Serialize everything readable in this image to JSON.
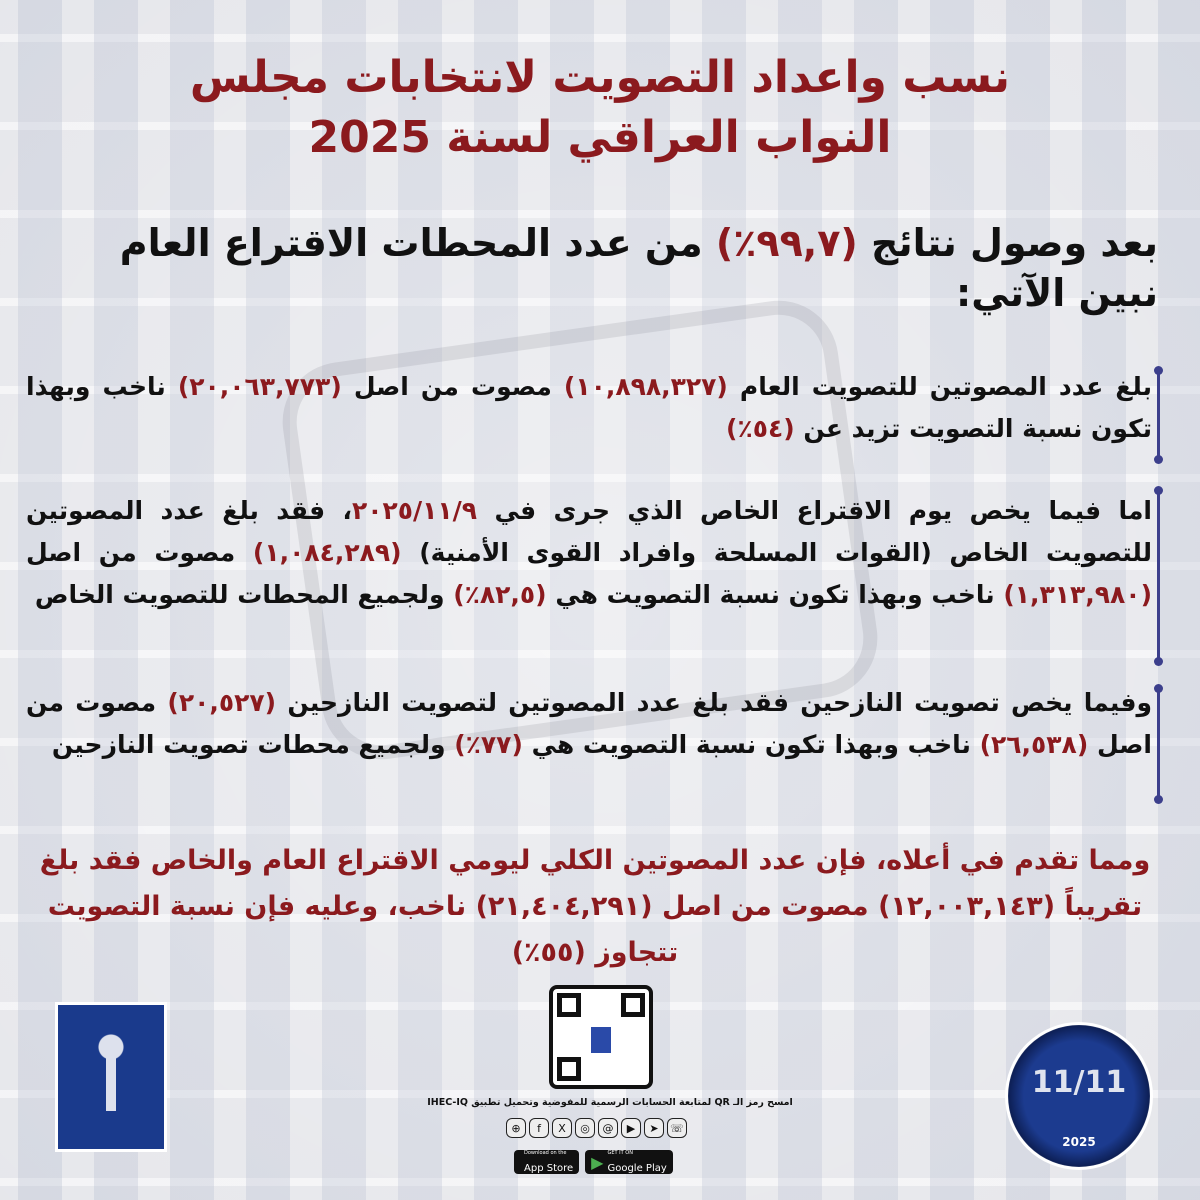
{
  "title": {
    "line1": "نسب واعداد التصويت لانتخابات مجلس",
    "line2": "النواب العراقي لسنة 2025"
  },
  "intro": [
    {
      "t": "بعد وصول نتائج "
    },
    {
      "t": "(٩٩,٧٪)",
      "hl": true
    },
    {
      "t": " من عدد المحطات الاقتراع العام نبين الآتي:"
    }
  ],
  "paragraphs": [
    [
      {
        "t": "بلغ عدد المصوتين للتصويت العام "
      },
      {
        "t": "(١٠,٨٩٨,٣٢٧)",
        "hl": true
      },
      {
        "t": " مصوت من اصل "
      },
      {
        "t": "(٢٠,٠٦٣,٧٧٣)",
        "hl": true
      },
      {
        "t": " ناخب وبهذا تكون نسبة التصويت تزيد عن "
      },
      {
        "t": "(٥٤٪)",
        "hl": true
      }
    ],
    [
      {
        "t": "اما فيما يخص يوم الاقتراع الخاص الذي جرى في "
      },
      {
        "t": "٢٠٢٥/١١/٩",
        "hl": true
      },
      {
        "t": "، فقد بلغ عدد المصوتين للتصويت الخاص (القوات المسلحة وافراد القوى الأمنية) "
      },
      {
        "t": "(١,٠٨٤,٢٨٩)",
        "hl": true
      },
      {
        "t": " مصوت من اصل "
      },
      {
        "t": "(١,٣١٣,٩٨٠)",
        "hl": true
      },
      {
        "t": " ناخب وبهذا تكون نسبة التصويت هي "
      },
      {
        "t": "(٨٢,٥٪)",
        "hl": true
      },
      {
        "t": " ولجميع المحطات للتصويت الخاص"
      }
    ],
    [
      {
        "t": "وفيما يخص تصويت النازحين فقد بلغ عدد المصوتين لتصويت النازحين "
      },
      {
        "t": "(٢٠,٥٢٧)",
        "hl": true
      },
      {
        "t": " مصوت من اصل "
      },
      {
        "t": "(٢٦,٥٣٨)",
        "hl": true
      },
      {
        "t": " ناخب وبهذا تكون نسبة التصويت هي "
      },
      {
        "t": "(٧٧٪)",
        "hl": true
      },
      {
        "t": " ولجميع محطات تصويت النازحين"
      }
    ]
  ],
  "summary": [
    {
      "t": "ومما تقدم في أعلاه، فإن عدد المصوتين الكلي ليومي الاقتراع العام والخاص فقد بلغ تقريباً "
    },
    {
      "t": "(١٢,٠٠٣,١٤٣)"
    },
    {
      "t": " مصوت من اصل "
    },
    {
      "t": "(٢١,٤٠٤,٢٩١)"
    },
    {
      "t": " ناخب، وعليه فإن نسبة التصويت تتجاوز "
    },
    {
      "t": "(٥٥٪)"
    }
  ],
  "footer": {
    "qr_caption": "امسح رمز الـ QR لمتابعة الحسابات الرسمية للمفوضية وتحميل تطبيق IHEC-IQ",
    "social_icons": [
      "globe-icon",
      "facebook-icon",
      "x-icon",
      "instagram-icon",
      "threads-icon",
      "youtube-icon",
      "telegram-icon",
      "viber-icon"
    ],
    "app_store": {
      "small": "Download on the",
      "big": "App Store"
    },
    "google_play": {
      "small": "GET IT ON",
      "big": "Google Play"
    },
    "seal": {
      "number": "11/11",
      "year": "2025"
    }
  },
  "colors": {
    "accent": "#8b1a1e",
    "bar": "#3c3f8c",
    "logo": "#1a3a8c"
  }
}
